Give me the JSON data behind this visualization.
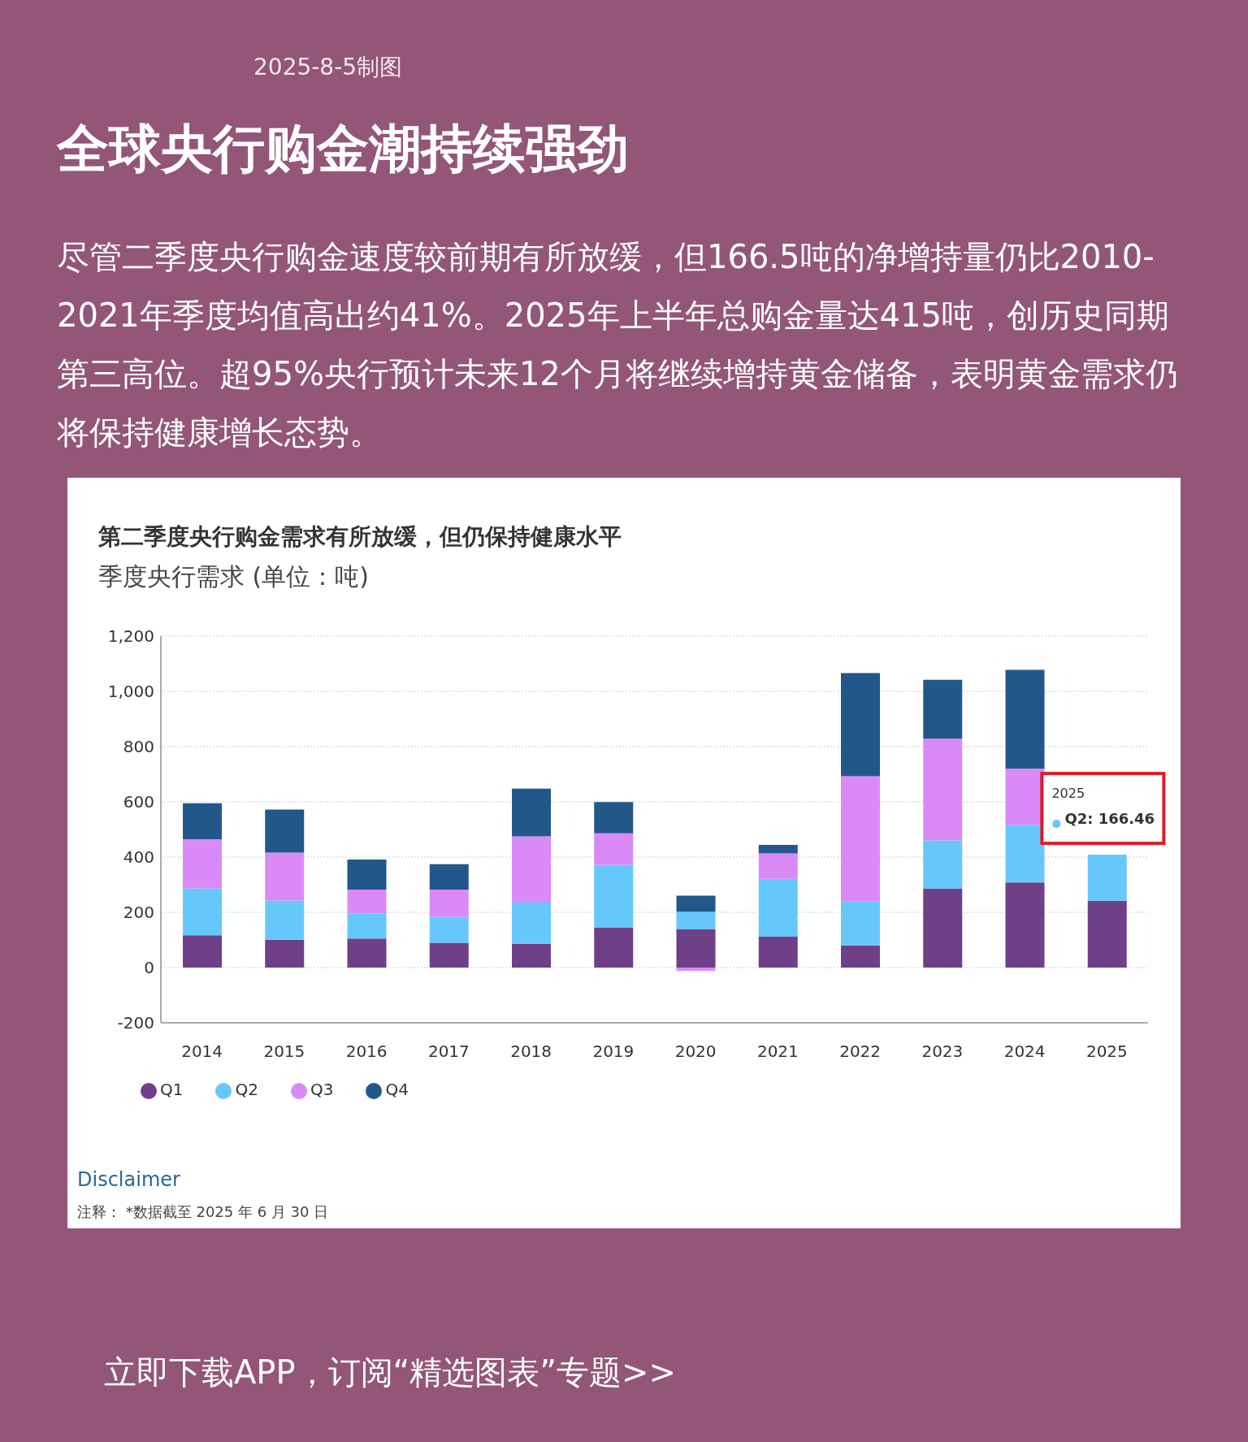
{
  "chart_data": {
    "type": "bar",
    "title": "全球央行购金潮持续强劲",
    "subtitle": "尽管二季度央行购金速度较前期有所放缓，但166.5吨的净增持量仍比2010-2021年季度均值高出约41%。2025年上半年总购金量达415吨，创历史同期第三高位。超95%央行预计未来12个月将继续增持黄金储备，表明黄金需求仍将保持健康增长态势。",
    "ylabel": "季度央行需求 (单位：吨)",
    "annotations": [
      "2025-8-5制图",
      "第二季度央行购金需求有所放缓，但仍保持健康水平",
      "2025",
      {
        "text": "Q2: 166.46",
        "x": "2025",
        "y": 408.46
      },
      "Disclaimer",
      "注释： *数据截至 2025 年 6 月 30 日",
      "立即下载APP，订阅“精选图表”专题>>"
    ],
    "categories": [
      "2014",
      "2015",
      "2016",
      "2017",
      "2018",
      "2019",
      "2020",
      "2021",
      "2022",
      "2023",
      "2024",
      "2025"
    ],
    "stacked": true,
    "series": [
      {
        "name": "Q1",
        "color": "#6f3f87",
        "values": [
          117,
          101,
          105,
          90,
          86,
          144,
          138,
          112,
          80,
          286,
          308,
          242
        ]
      },
      {
        "name": "Q2",
        "color": "#66c8fa",
        "values": [
          170,
          142,
          90,
          94,
          149,
          228,
          64,
          209,
          159,
          174,
          208,
          166.46
        ]
      },
      {
        "name": "Q3",
        "color": "#d98af7",
        "values": [
          178,
          173,
          87,
          98,
          240,
          114,
          -12,
          92,
          454,
          369,
          204,
          null
        ]
      },
      {
        "name": "Q4",
        "color": "#22578a",
        "values": [
          130,
          156,
          109,
          92,
          173,
          113,
          58,
          31,
          373,
          213,
          358,
          null
        ]
      }
    ],
    "ylim": [
      -200,
      1200
    ],
    "yticks": [
      -200,
      0,
      200,
      400,
      600,
      800,
      {
        "value": 1000,
        "label": "1,000"
      },
      {
        "value": 1200,
        "label": "1,200"
      }
    ],
    "grid": "y",
    "legend": "bottom left"
  }
}
